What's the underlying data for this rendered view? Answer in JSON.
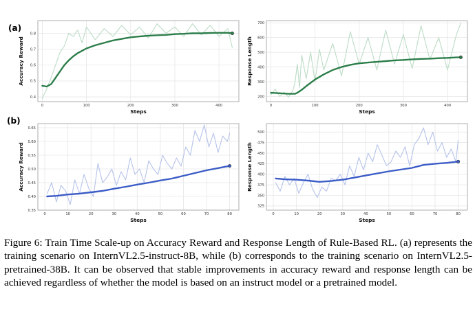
{
  "panel_labels": [
    "(a)",
    "(b)"
  ],
  "caption": {
    "text": "Figure 6: Train Time Scale-up on Accuracy Reward and Response Length of Rule-Based RL. (a) represents the training scenario on InternVL2.5-instruct-8B, while (b) corresponds to the training scenario on InternVL2.5-pretrained-38B. It can be observed that stable improvements in accuracy reward and response length can be achieved regardless of whether the model is based on an instruct model or a pretrained model."
  },
  "colors": {
    "a_raw": "#bcdcc6",
    "a_smooth": "#2b7d4a",
    "b_raw": "#b6c3ea",
    "b_smooth": "#3b5cc7"
  },
  "chart_data": [
    {
      "type": "line",
      "panel": "(a)",
      "xlabel": "Steps",
      "ylabel": "Accuracy Reward",
      "xlim": [
        -10,
        445
      ],
      "ylim": [
        0.37,
        0.88
      ],
      "xticks": [
        0,
        100,
        200,
        300,
        400
      ],
      "yticks": [
        0.4,
        0.5,
        0.6,
        0.7,
        0.8
      ],
      "grid": true,
      "series": [
        {
          "role": "raw",
          "x": [
            0,
            10,
            20,
            30,
            40,
            50,
            60,
            70,
            80,
            90,
            100,
            120,
            140,
            160,
            180,
            200,
            220,
            240,
            260,
            280,
            300,
            320,
            340,
            360,
            380,
            400,
            420,
            430
          ],
          "y": [
            0.39,
            0.45,
            0.52,
            0.6,
            0.68,
            0.72,
            0.8,
            0.78,
            0.82,
            0.74,
            0.84,
            0.76,
            0.83,
            0.78,
            0.85,
            0.79,
            0.84,
            0.77,
            0.86,
            0.8,
            0.84,
            0.78,
            0.86,
            0.79,
            0.85,
            0.78,
            0.83,
            0.71
          ]
        },
        {
          "role": "smoothed",
          "x": [
            0,
            10,
            20,
            30,
            40,
            50,
            60,
            70,
            80,
            100,
            120,
            140,
            160,
            180,
            200,
            220,
            240,
            260,
            280,
            300,
            320,
            340,
            360,
            380,
            400,
            420,
            430
          ],
          "y": [
            0.47,
            0.465,
            0.48,
            0.52,
            0.56,
            0.6,
            0.63,
            0.655,
            0.675,
            0.705,
            0.725,
            0.74,
            0.755,
            0.765,
            0.775,
            0.78,
            0.785,
            0.788,
            0.79,
            0.795,
            0.797,
            0.8,
            0.8,
            0.802,
            0.803,
            0.803,
            0.8
          ]
        }
      ]
    },
    {
      "type": "line",
      "panel": "(a)",
      "xlabel": "Steps",
      "ylabel": "Response Length",
      "xlim": [
        -10,
        445
      ],
      "ylim": [
        165,
        715
      ],
      "xticks": [
        0,
        100,
        200,
        300,
        400
      ],
      "yticks": [
        200,
        300,
        400,
        500,
        600,
        700
      ],
      "grid": true,
      "series": [
        {
          "role": "raw",
          "x": [
            0,
            10,
            20,
            30,
            40,
            50,
            55,
            60,
            65,
            70,
            80,
            90,
            100,
            110,
            120,
            140,
            160,
            180,
            200,
            220,
            240,
            260,
            280,
            300,
            320,
            340,
            360,
            380,
            400,
            420,
            430
          ],
          "y": [
            210,
            250,
            200,
            230,
            195,
            240,
            300,
            420,
            260,
            480,
            320,
            500,
            300,
            520,
            380,
            560,
            340,
            640,
            420,
            600,
            380,
            650,
            420,
            620,
            390,
            680,
            450,
            600,
            380,
            620,
            700
          ]
        },
        {
          "role": "smoothed",
          "x": [
            0,
            20,
            40,
            55,
            60,
            70,
            80,
            100,
            120,
            140,
            160,
            180,
            200,
            220,
            240,
            260,
            280,
            300,
            320,
            340,
            360,
            380,
            400,
            420,
            430
          ],
          "y": [
            225,
            222,
            218,
            218,
            225,
            245,
            270,
            315,
            350,
            380,
            400,
            415,
            425,
            430,
            435,
            440,
            445,
            448,
            452,
            455,
            457,
            460,
            462,
            465,
            466
          ]
        }
      ]
    },
    {
      "type": "line",
      "panel": "(b)",
      "xlabel": "Steps",
      "ylabel": "Accuracy Reward",
      "xlim": [
        -3,
        84
      ],
      "ylim": [
        0.35,
        0.665
      ],
      "xticks": [
        0,
        10,
        20,
        30,
        40,
        50,
        60,
        70,
        80
      ],
      "yticks": [
        0.35,
        0.4,
        0.45,
        0.5,
        0.55,
        0.6,
        0.65
      ],
      "grid": true,
      "series": [
        {
          "role": "raw",
          "x": [
            1,
            3,
            5,
            7,
            9,
            11,
            13,
            15,
            17,
            19,
            21,
            23,
            25,
            27,
            29,
            31,
            33,
            35,
            37,
            39,
            41,
            43,
            45,
            47,
            49,
            51,
            53,
            55,
            57,
            59,
            61,
            63,
            65,
            67,
            69,
            71,
            73,
            75,
            77,
            79,
            80
          ],
          "y": [
            0.41,
            0.45,
            0.38,
            0.44,
            0.42,
            0.37,
            0.46,
            0.41,
            0.48,
            0.43,
            0.4,
            0.52,
            0.45,
            0.47,
            0.5,
            0.44,
            0.49,
            0.46,
            0.54,
            0.48,
            0.5,
            0.45,
            0.53,
            0.5,
            0.48,
            0.55,
            0.52,
            0.5,
            0.54,
            0.51,
            0.58,
            0.55,
            0.64,
            0.6,
            0.66,
            0.58,
            0.63,
            0.56,
            0.62,
            0.6,
            0.63
          ]
        },
        {
          "role": "smoothed",
          "x": [
            1,
            5,
            10,
            15,
            20,
            25,
            30,
            35,
            40,
            45,
            50,
            55,
            60,
            65,
            70,
            75,
            80
          ],
          "y": [
            0.4,
            0.402,
            0.407,
            0.41,
            0.415,
            0.42,
            0.428,
            0.435,
            0.443,
            0.45,
            0.458,
            0.465,
            0.475,
            0.485,
            0.495,
            0.503,
            0.511
          ]
        }
      ]
    },
    {
      "type": "line",
      "panel": "(b)",
      "xlabel": "Steps",
      "ylabel": "Response Length",
      "xlim": [
        -3,
        84
      ],
      "ylim": [
        315,
        520
      ],
      "xticks": [
        0,
        10,
        20,
        30,
        40,
        50,
        60,
        70,
        80
      ],
      "yticks": [
        325,
        350,
        375,
        400,
        425,
        450,
        475,
        500
      ],
      "grid": true,
      "series": [
        {
          "role": "raw",
          "x": [
            1,
            3,
            5,
            7,
            9,
            11,
            13,
            15,
            17,
            19,
            21,
            23,
            25,
            27,
            29,
            31,
            33,
            35,
            37,
            39,
            41,
            43,
            45,
            47,
            49,
            51,
            53,
            55,
            57,
            59,
            61,
            63,
            65,
            67,
            69,
            71,
            73,
            75,
            77,
            79,
            80
          ],
          "y": [
            380,
            360,
            395,
            375,
            390,
            355,
            380,
            400,
            365,
            345,
            370,
            360,
            390,
            385,
            400,
            375,
            420,
            395,
            440,
            410,
            450,
            430,
            470,
            445,
            420,
            430,
            455,
            440,
            465,
            420,
            470,
            485,
            510,
            470,
            500,
            455,
            475,
            440,
            460,
            430,
            480
          ]
        },
        {
          "role": "smoothed",
          "x": [
            1,
            5,
            10,
            15,
            20,
            25,
            30,
            35,
            40,
            45,
            50,
            55,
            60,
            65,
            70,
            75,
            80
          ],
          "y": [
            390,
            388,
            387,
            385,
            382,
            384,
            387,
            392,
            397,
            402,
            407,
            411,
            415,
            422,
            425,
            427,
            430
          ]
        }
      ]
    }
  ]
}
